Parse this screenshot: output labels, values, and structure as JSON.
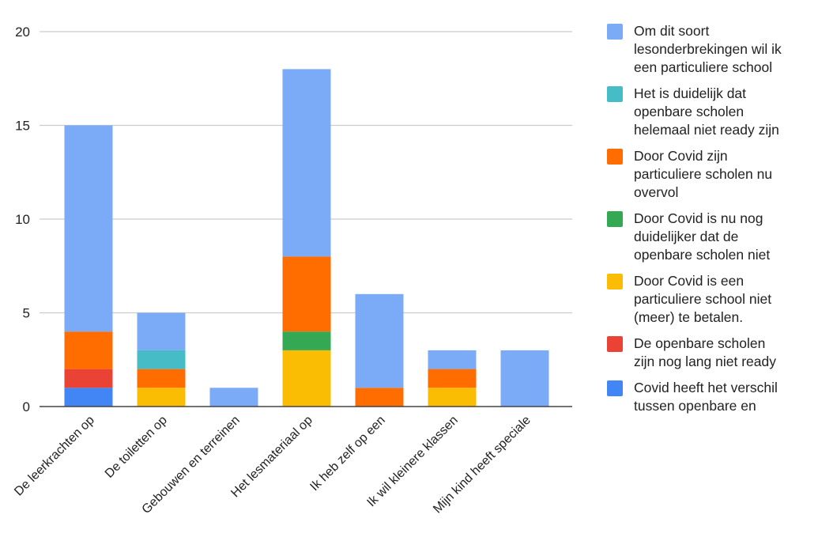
{
  "chart_data": {
    "type": "bar",
    "stacked": true,
    "title": "",
    "xlabel": "",
    "ylabel": "",
    "ylim": [
      0,
      20
    ],
    "yticks": [
      0,
      5,
      10,
      15,
      20
    ],
    "grid": true,
    "legend_position": "right",
    "categories": [
      "De leerkrachten op",
      "De toiletten op",
      "Gebouwen en terreinen",
      "Het lesmateriaal op",
      "Ik heb zelf op een",
      "Ik wil kleinere klassen",
      "Mijn kind heeft speciale"
    ],
    "series": [
      {
        "name": "Covid heeft het verschil tussen openbare en",
        "color": "#4285f4",
        "values": [
          1,
          0,
          0,
          0,
          0,
          0,
          0
        ]
      },
      {
        "name": "De openbare scholen zijn nog lang niet ready",
        "color": "#ea4335",
        "values": [
          1,
          0,
          0,
          0,
          0,
          0,
          0
        ]
      },
      {
        "name": "Door Covid is een particuliere school niet (meer) te betalen.",
        "color": "#fbbc04",
        "values": [
          0,
          1,
          0,
          3,
          0,
          1,
          0
        ]
      },
      {
        "name": "Door Covid is nu nog duidelijker dat de openbare scholen niet",
        "color": "#34a853",
        "values": [
          0,
          0,
          0,
          1,
          0,
          0,
          0
        ]
      },
      {
        "name": "Door Covid zijn particuliere scholen nu overvol",
        "color": "#ff6d01",
        "values": [
          2,
          1,
          0,
          4,
          1,
          1,
          0
        ]
      },
      {
        "name": "Het is duidelijk dat openbare scholen helemaal niet ready zijn",
        "color": "#46bdc6",
        "values": [
          0,
          1,
          0,
          0,
          0,
          0,
          0
        ]
      },
      {
        "name": "Om dit soort lesonderbrekingen  wil ik een particuliere school",
        "color": "#7baaf7",
        "values": [
          11,
          2,
          1,
          10,
          5,
          1,
          3
        ]
      }
    ]
  },
  "legend": {
    "items": [
      {
        "label": "Om dit soort\nlesonderbrekingen  wil ik\neen particuliere school",
        "color": "#7baaf7"
      },
      {
        "label": "Het is duidelijk dat\nopenbare scholen\nhelemaal niet ready zijn",
        "color": "#46bdc6"
      },
      {
        "label": "Door Covid zijn\nparticuliere scholen nu\novervol",
        "color": "#ff6d01"
      },
      {
        "label": "Door Covid is nu nog\nduidelijker dat de\nopenbare scholen niet",
        "color": "#34a853"
      },
      {
        "label": "Door Covid is een\nparticuliere school niet\n(meer) te betalen.",
        "color": "#fbbc04"
      },
      {
        "label": "De openbare scholen\nzijn nog lang niet ready",
        "color": "#ea4335"
      },
      {
        "label": "Covid heeft het verschil\ntussen openbare en",
        "color": "#4285f4"
      }
    ]
  }
}
